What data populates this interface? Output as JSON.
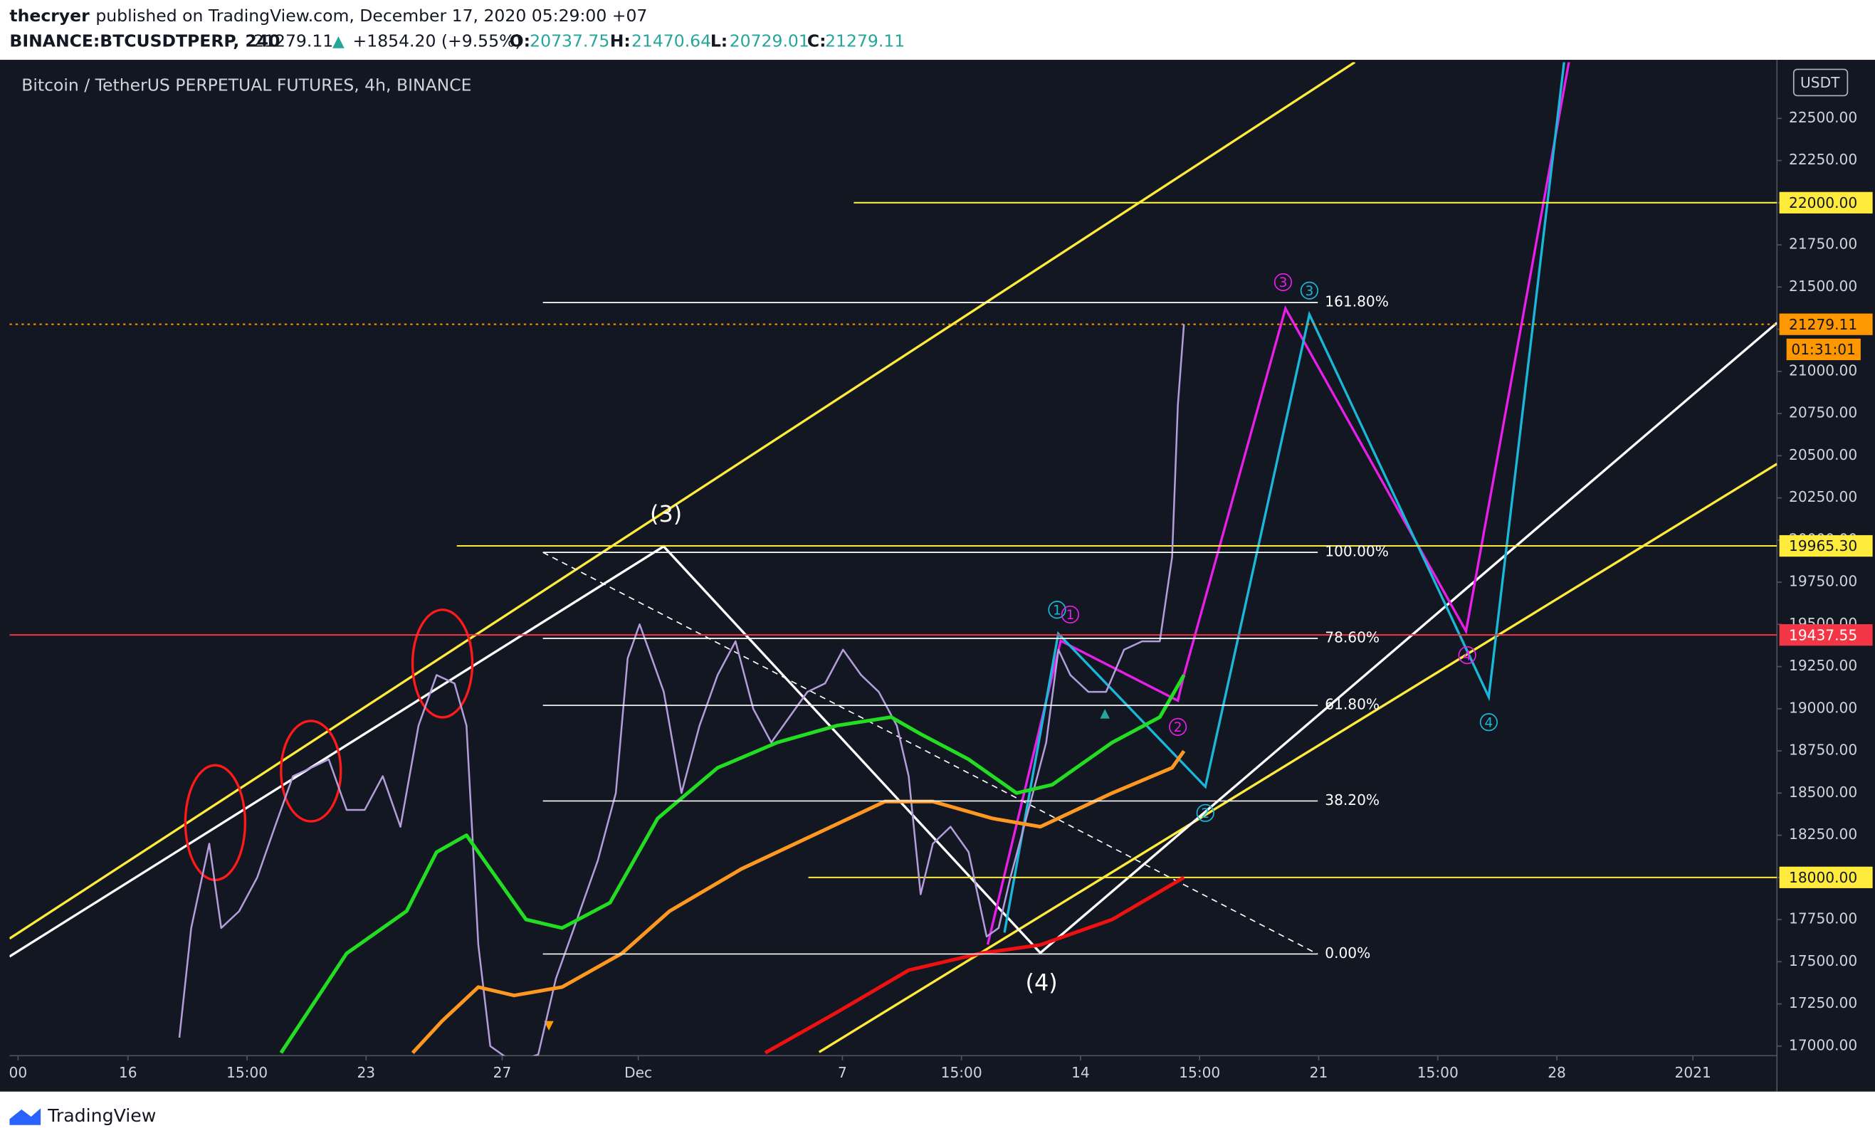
{
  "header": {
    "author": "thecryer",
    "published": "published on TradingView.com, December 17, 2020 05:29:00 +07",
    "symbol": "BINANCE:BTCUSDTPERP, 240",
    "last": "21279.11",
    "arrow": "▲",
    "change": "+1854.20 (+9.55%)",
    "o_label": "O:",
    "o": "20737.75",
    "h_label": "H:",
    "h": "21470.64",
    "l_label": "L:",
    "l": "20729.01",
    "c_label": "C:",
    "c": "21279.11"
  },
  "chart_data": {
    "type": "line",
    "title": "Bitcoin / TetherUS PERPETUAL FUTURES, 4h, BINANCE",
    "currency": "USDT",
    "countdown": "01:31:01",
    "branding": "TradingView",
    "xlim": [
      12.52,
      64.47
    ],
    "ylim": [
      16943,
      22833
    ],
    "xticks": [
      {
        "value": 12.77,
        "label": "00"
      },
      16,
      {
        "value": 19.5,
        "label": "15:00"
      },
      23,
      27,
      {
        "value": 31,
        "label": "Dec"
      },
      {
        "value": 37,
        "label": "7"
      },
      {
        "value": 40.5,
        "label": "15:00"
      },
      {
        "value": 44,
        "label": "14"
      },
      {
        "value": 47.5,
        "label": "15:00"
      },
      {
        "value": 51,
        "label": "21"
      },
      {
        "value": 54.5,
        "label": "15:00"
      },
      {
        "value": 58,
        "label": "28"
      },
      {
        "value": 62,
        "label": "2021"
      }
    ],
    "yticks": [
      {
        "value": 17000,
        "label": "17000.00"
      },
      {
        "value": 17250,
        "label": "17250.00"
      },
      {
        "value": 17500,
        "label": "17500.00"
      },
      {
        "value": 17750,
        "label": "17750.00"
      },
      {
        "value": 18000,
        "label": "18000.00"
      },
      {
        "value": 18250,
        "label": "18250.00"
      },
      {
        "value": 18500,
        "label": "18500.00"
      },
      {
        "value": 18750,
        "label": "18750.00"
      },
      {
        "value": 19000,
        "label": "19000.00"
      },
      {
        "value": 19250,
        "label": "19250.00"
      },
      {
        "value": 19500,
        "label": "19500.00"
      },
      {
        "value": 19750,
        "label": "19750.00"
      },
      {
        "value": 20000,
        "label": "20000.00"
      },
      {
        "value": 20250,
        "label": "20250.00"
      },
      {
        "value": 20500,
        "label": "20500.00"
      },
      {
        "value": 20750,
        "label": "20750.00"
      },
      {
        "value": 21000,
        "label": "21000.00"
      },
      {
        "value": 21250,
        "label": "21250.00"
      },
      {
        "value": 21500,
        "label": "21500.00"
      },
      {
        "value": 21750,
        "label": "21750.00"
      },
      {
        "value": 22000,
        "label": "22000.00"
      },
      {
        "value": 22250,
        "label": "22250.00"
      },
      {
        "value": 22500,
        "label": "22500.00"
      }
    ],
    "series": [
      {
        "color": "#b39ddb",
        "x": [
          17.51,
          17.86,
          18.39,
          18.74,
          19.27,
          19.8,
          20.32,
          20.85,
          21.38,
          21.9,
          22.43,
          22.96,
          23.49,
          24.01,
          24.54,
          25.07,
          25.6,
          25.95,
          26.3,
          26.65,
          27.35,
          28.06,
          28.58,
          29.11,
          29.81,
          30.34,
          30.69,
          31.04,
          31.4,
          31.75,
          32.27,
          32.8,
          33.33,
          33.86,
          34.38,
          34.91,
          35.44,
          35.97,
          36.49,
          37.02,
          37.55,
          38.07,
          38.6,
          38.95,
          39.3,
          39.66,
          40.18,
          40.71,
          41.24,
          41.59,
          41.94,
          42.47,
          42.99,
          43.35,
          43.7,
          44.23,
          44.75,
          45.28,
          45.81,
          46.33,
          46.69,
          46.86,
          47.04
        ],
        "values": [
          17050,
          17700,
          18200,
          17700,
          17800,
          18000,
          18300,
          18600,
          18650,
          18700,
          18400,
          18400,
          18600,
          18300,
          18900,
          19200,
          19150,
          18900,
          17600,
          17000,
          16900,
          16950,
          17400,
          17700,
          18100,
          18500,
          19300,
          19500,
          19300,
          19100,
          18500,
          18900,
          19200,
          19400,
          19000,
          18800,
          18950,
          19100,
          19150,
          19350,
          19200,
          19100,
          18900,
          18600,
          17900,
          18200,
          18300,
          18150,
          17650,
          17700,
          18000,
          18400,
          18800,
          19350,
          19200,
          19100,
          19100,
          19350,
          19400,
          19400,
          19900,
          20800,
          21279
        ]
      },
      {
        "color": "#22dd22",
        "x": [
          20.5,
          22.43,
          24.19,
          25.07,
          25.95,
          26.65,
          27.7,
          28.76,
          30.17,
          31.57,
          33.33,
          35.09,
          36.84,
          38.43,
          39.3,
          40.71,
          42.12,
          43.17,
          44.93,
          46.33,
          47.04
        ],
        "values": [
          16960,
          17550,
          17800,
          18150,
          18250,
          18050,
          17750,
          17700,
          17850,
          18350,
          18650,
          18800,
          18900,
          18950,
          18850,
          18700,
          18500,
          18550,
          18800,
          18950,
          19200
        ]
      },
      {
        "color": "#ff9820",
        "x": [
          24.37,
          25.24,
          26.3,
          27.35,
          28.76,
          30.52,
          31.92,
          34.03,
          36.14,
          38.25,
          39.66,
          41.41,
          42.82,
          44.93,
          46.69,
          47.04
        ],
        "values": [
          16960,
          17150,
          17350,
          17300,
          17350,
          17550,
          17800,
          18050,
          18250,
          18450,
          18450,
          18350,
          18300,
          18500,
          18650,
          18750
        ]
      },
      {
        "color": "#ee1111",
        "x": [
          34.73,
          36.84,
          38.95,
          41.06,
          42.82,
          44.93,
          47.04
        ],
        "values": [
          16960,
          17200,
          17450,
          17550,
          17600,
          17750,
          18000
        ]
      }
    ],
    "levels": [
      {
        "value": 22000,
        "label": "22000.00",
        "color": "#ffeb3b"
      },
      {
        "value": 21279.11,
        "label": "21279.11",
        "color": "#ff9800"
      },
      {
        "value": 19965.3,
        "label": "19965.30",
        "color": "#ffeb3b"
      },
      {
        "value": 19437.55,
        "label": "19437.55",
        "color": "#f23645"
      },
      {
        "value": 18000,
        "label": "18000.00",
        "color": "#ffeb3b"
      }
    ],
    "fib": [
      {
        "value": 21408,
        "label": "161.80%"
      },
      {
        "value": 19927,
        "label": "100.00%"
      },
      {
        "value": 19417,
        "label": "78.60%"
      },
      {
        "value": 19020,
        "label": "61.80%"
      },
      {
        "value": 18453,
        "label": "38.20%"
      },
      {
        "value": 17546,
        "label": "0.00%"
      }
    ],
    "waves": {
      "major_3": "(3)",
      "major_4": "(4)",
      "c1": "1",
      "m1": "1",
      "m2": "2",
      "c2": "2",
      "m3": "3",
      "c3": "3",
      "m4": "4",
      "c4": "4"
    }
  }
}
